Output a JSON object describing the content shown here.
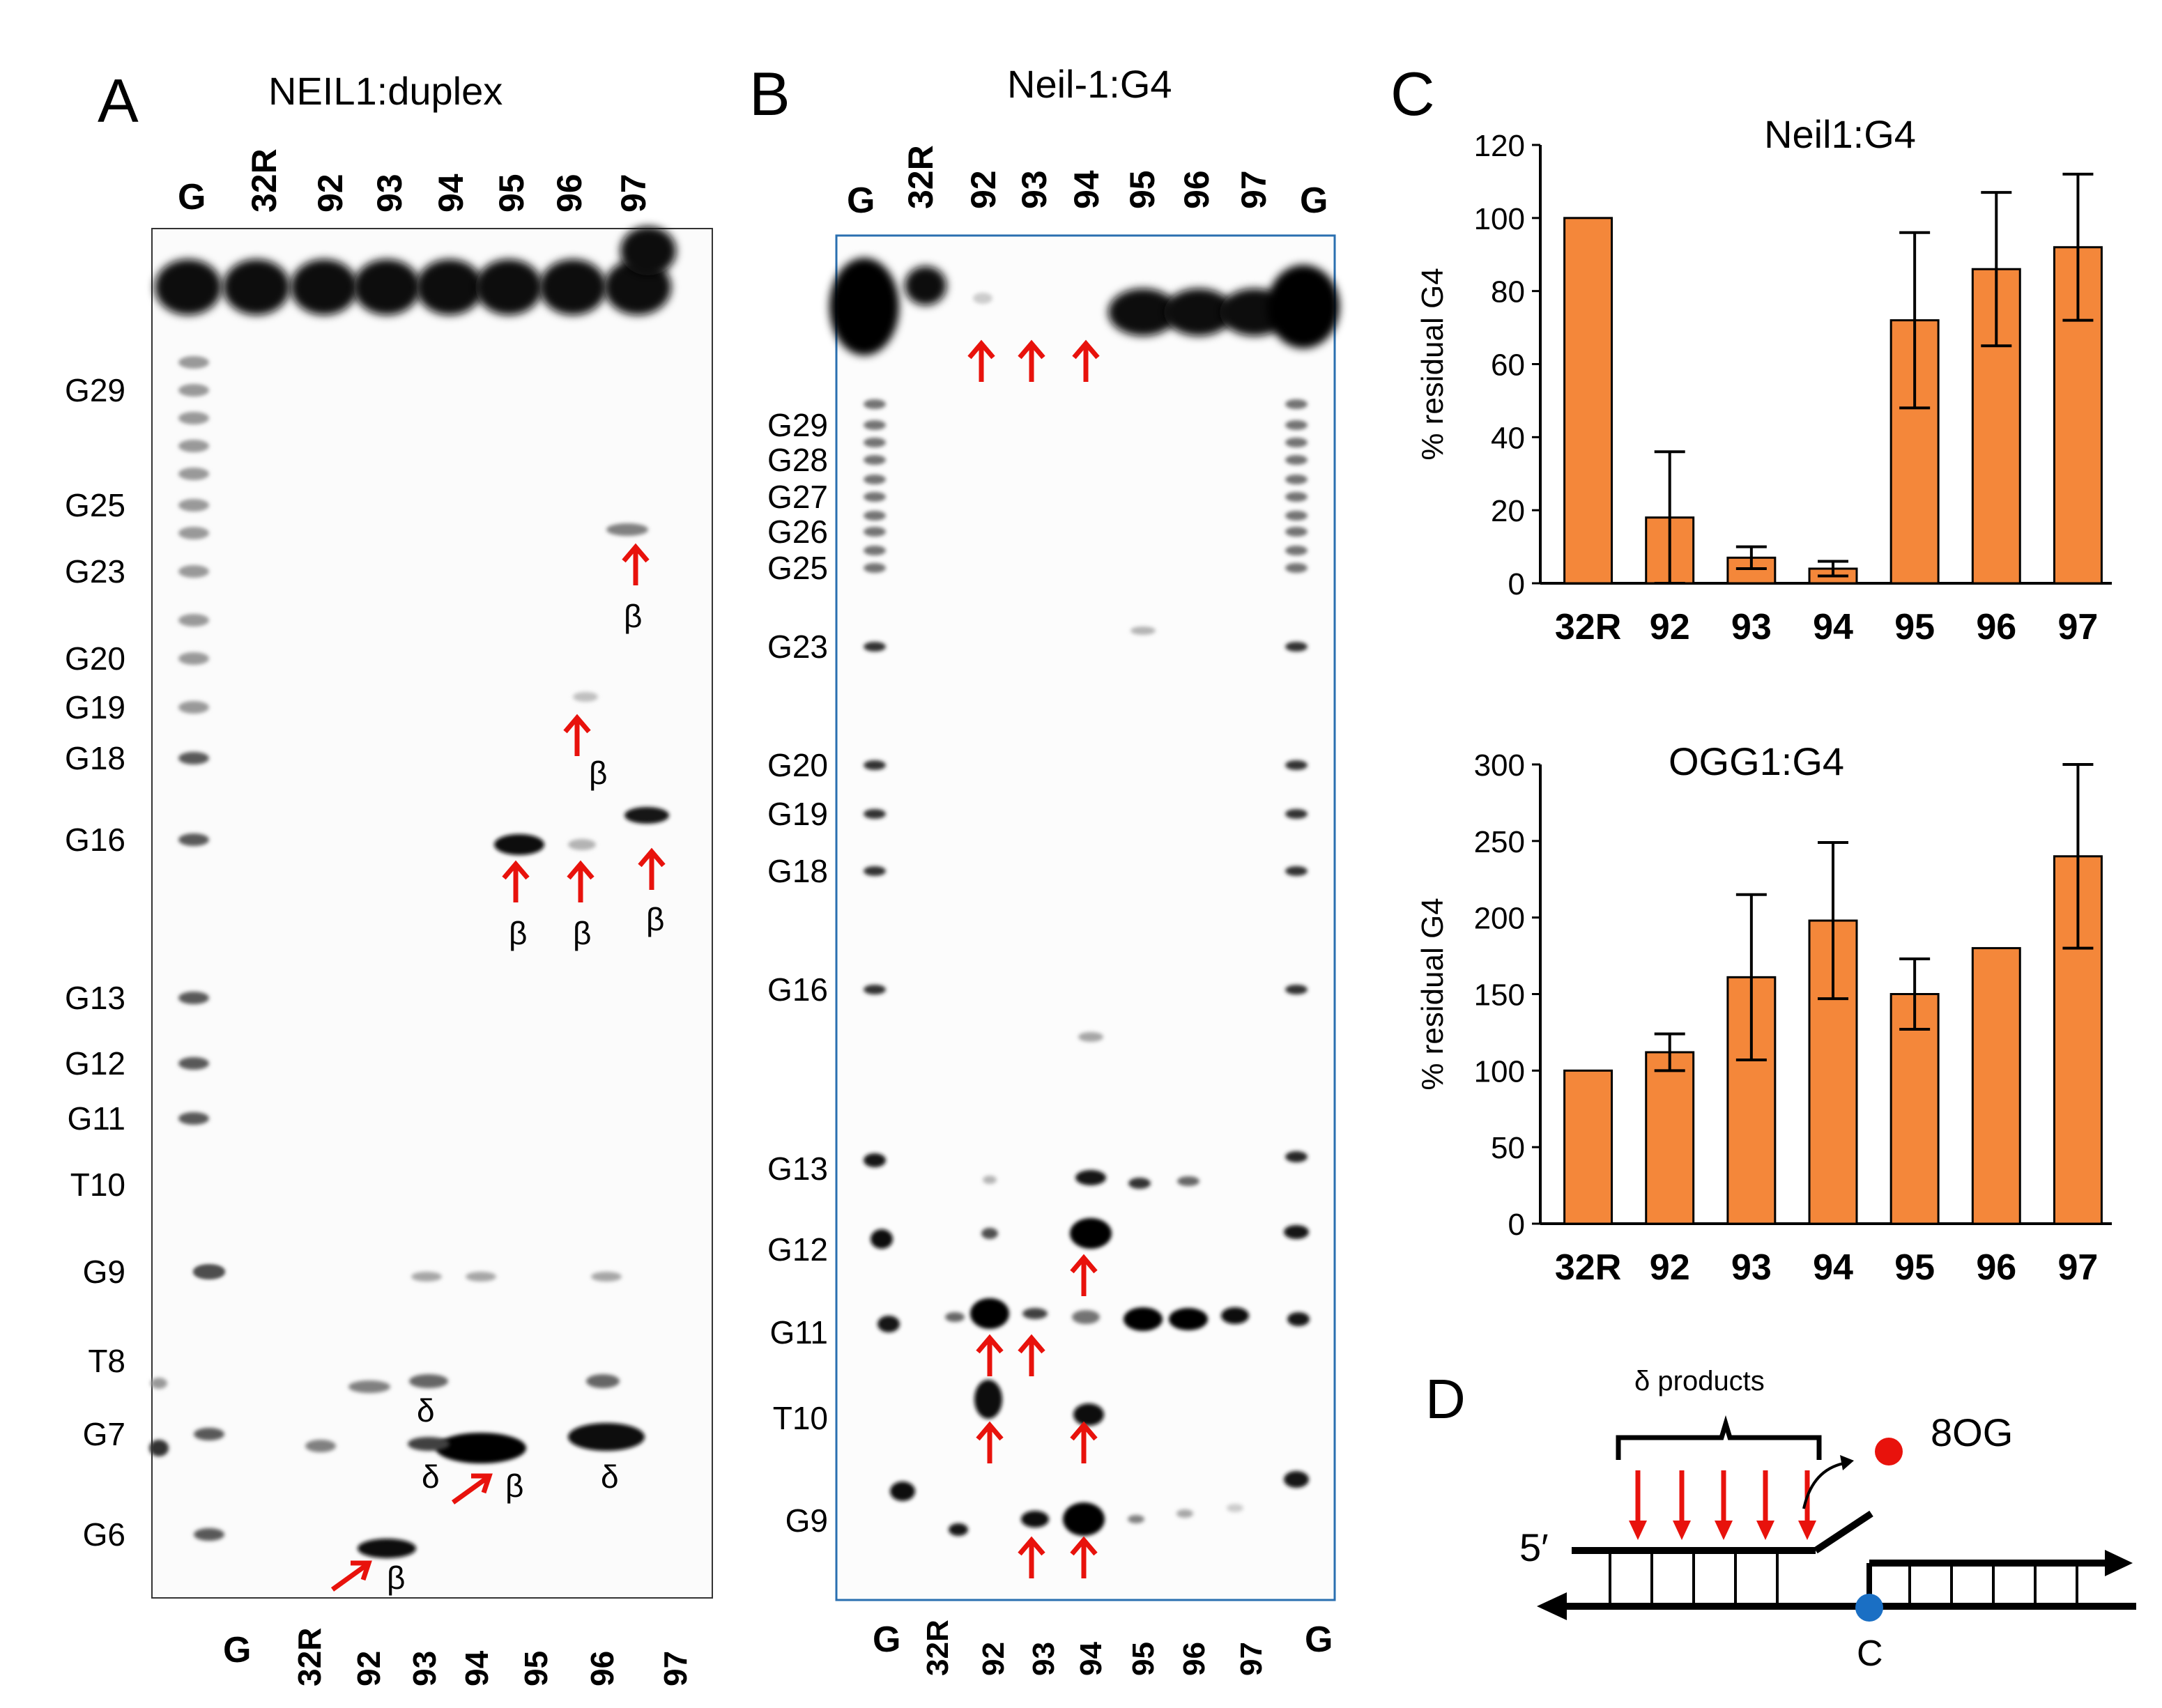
{
  "figure": {
    "panels": {
      "A": {
        "letter": "A",
        "title": "NEIL1:duplex",
        "top_lanes": [
          "G",
          "32R",
          "92",
          "93",
          "94",
          "95",
          "96",
          "97"
        ],
        "bottom_lanes": [
          "G",
          "32R",
          "92",
          "93",
          "94",
          "95",
          "96",
          "97"
        ],
        "band_labels": [
          "G29",
          "G25",
          "G23",
          "G20",
          "G19",
          "G18",
          "G16",
          "G13",
          "G12",
          "G11",
          "T10",
          "G9",
          "T8",
          "G7",
          "G6"
        ],
        "beta_symbol": "β",
        "delta_symbol": "δ"
      },
      "B": {
        "letter": "B",
        "title": "Neil-1:G4",
        "top_lanes": [
          "G",
          "32R",
          "92",
          "93",
          "94",
          "95",
          "96",
          "97",
          "G"
        ],
        "bottom_lanes": [
          "G",
          "32R",
          "92",
          "93",
          "94",
          "95",
          "96",
          "97",
          "G"
        ],
        "band_labels": [
          "G29",
          "G28",
          "G27",
          "G26",
          "G25",
          "G23",
          "G20",
          "G19",
          "G18",
          "G16",
          "G13",
          "G12",
          "G11",
          "T10",
          "G9"
        ]
      },
      "C": {
        "letter": "C"
      },
      "D": {
        "letter": "D",
        "products_label": "δ products",
        "lesion_label": "8OG",
        "five_prime": "5′",
        "base_label": "C"
      }
    }
  },
  "chart_data": [
    {
      "type": "bar",
      "title": "Neil1:G4",
      "ylabel": "% residual G4",
      "categories": [
        "32R",
        "92",
        "93",
        "94",
        "95",
        "96",
        "97"
      ],
      "values": [
        100,
        18,
        7,
        4,
        72,
        86,
        92
      ],
      "error": [
        0,
        18,
        3,
        2,
        24,
        21,
        20
      ],
      "ylim": [
        0,
        120
      ],
      "yticks": [
        "0",
        "20",
        "40",
        "60",
        "80",
        "100",
        "120"
      ],
      "color": "#F4873A"
    },
    {
      "type": "bar",
      "title": "OGG1:G4",
      "ylabel": "% residual G4",
      "categories": [
        "32R",
        "92",
        "93",
        "94",
        "95",
        "96",
        "97"
      ],
      "values": [
        100,
        112,
        161,
        198,
        150,
        180,
        240
      ],
      "error": [
        0,
        12,
        54,
        51,
        23,
        0,
        60
      ],
      "ylim": [
        0,
        300
      ],
      "yticks": [
        "0",
        "50",
        "100",
        "150",
        "200",
        "250",
        "300"
      ],
      "color": "#F4873A"
    }
  ]
}
